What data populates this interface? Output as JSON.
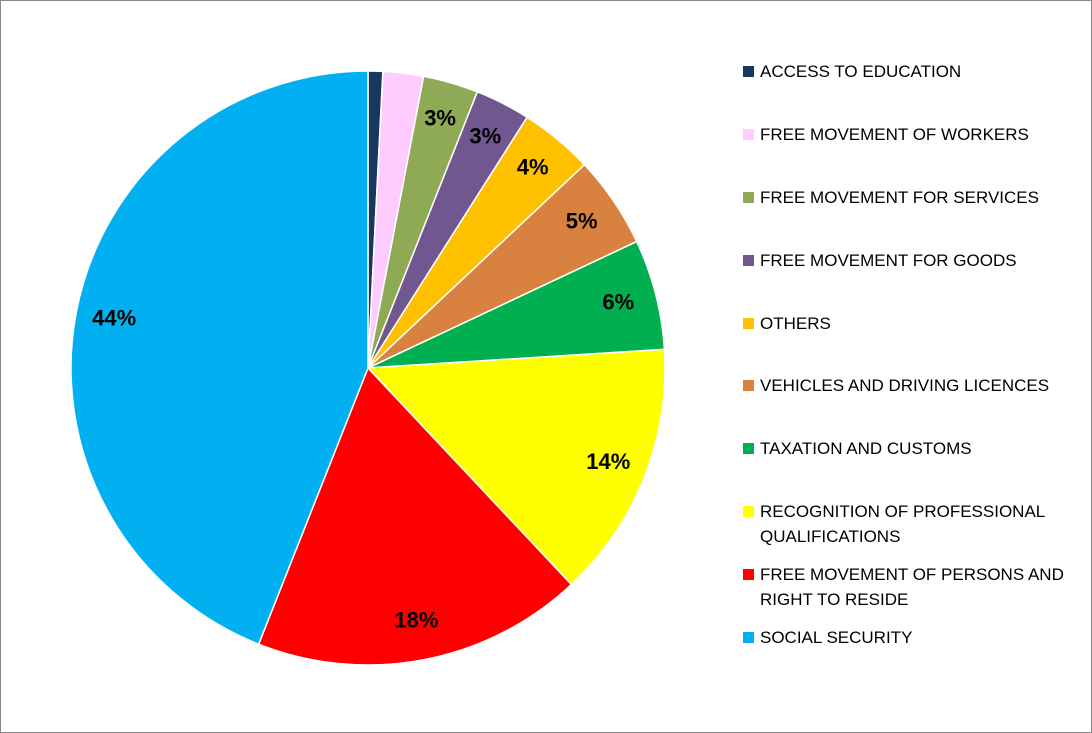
{
  "chart_data": {
    "type": "pie",
    "categories": [
      "ACCESS TO EDUCATION",
      "FREE MOVEMENT OF WORKERS",
      "FREE MOVEMENT FOR SERVICES",
      "FREE MOVEMENT FOR GOODS",
      "OTHERS",
      "VEHICLES AND DRIVING LICENCES",
      "TAXATION AND CUSTOMS",
      "RECOGNITION OF PROFESSIONAL QUALIFICATIONS",
      "FREE MOVEMENT OF PERSONS AND RIGHT TO RESIDE",
      "SOCIAL SECURITY"
    ],
    "values": [
      0.8,
      2.2,
      3,
      3,
      4,
      5,
      6,
      14,
      18,
      44
    ],
    "value_labels": [
      null,
      null,
      "3%",
      "3%",
      "4%",
      "5%",
      "6%",
      "14%",
      "18%",
      "44%"
    ],
    "colors": [
      "#17375e",
      "#ffccff",
      "#8faa55",
      "#71578f",
      "#ffc000",
      "#d9823f",
      "#00b050",
      "#ffff00",
      "#ff0000",
      "#00b0f0"
    ],
    "legend": "right"
  }
}
